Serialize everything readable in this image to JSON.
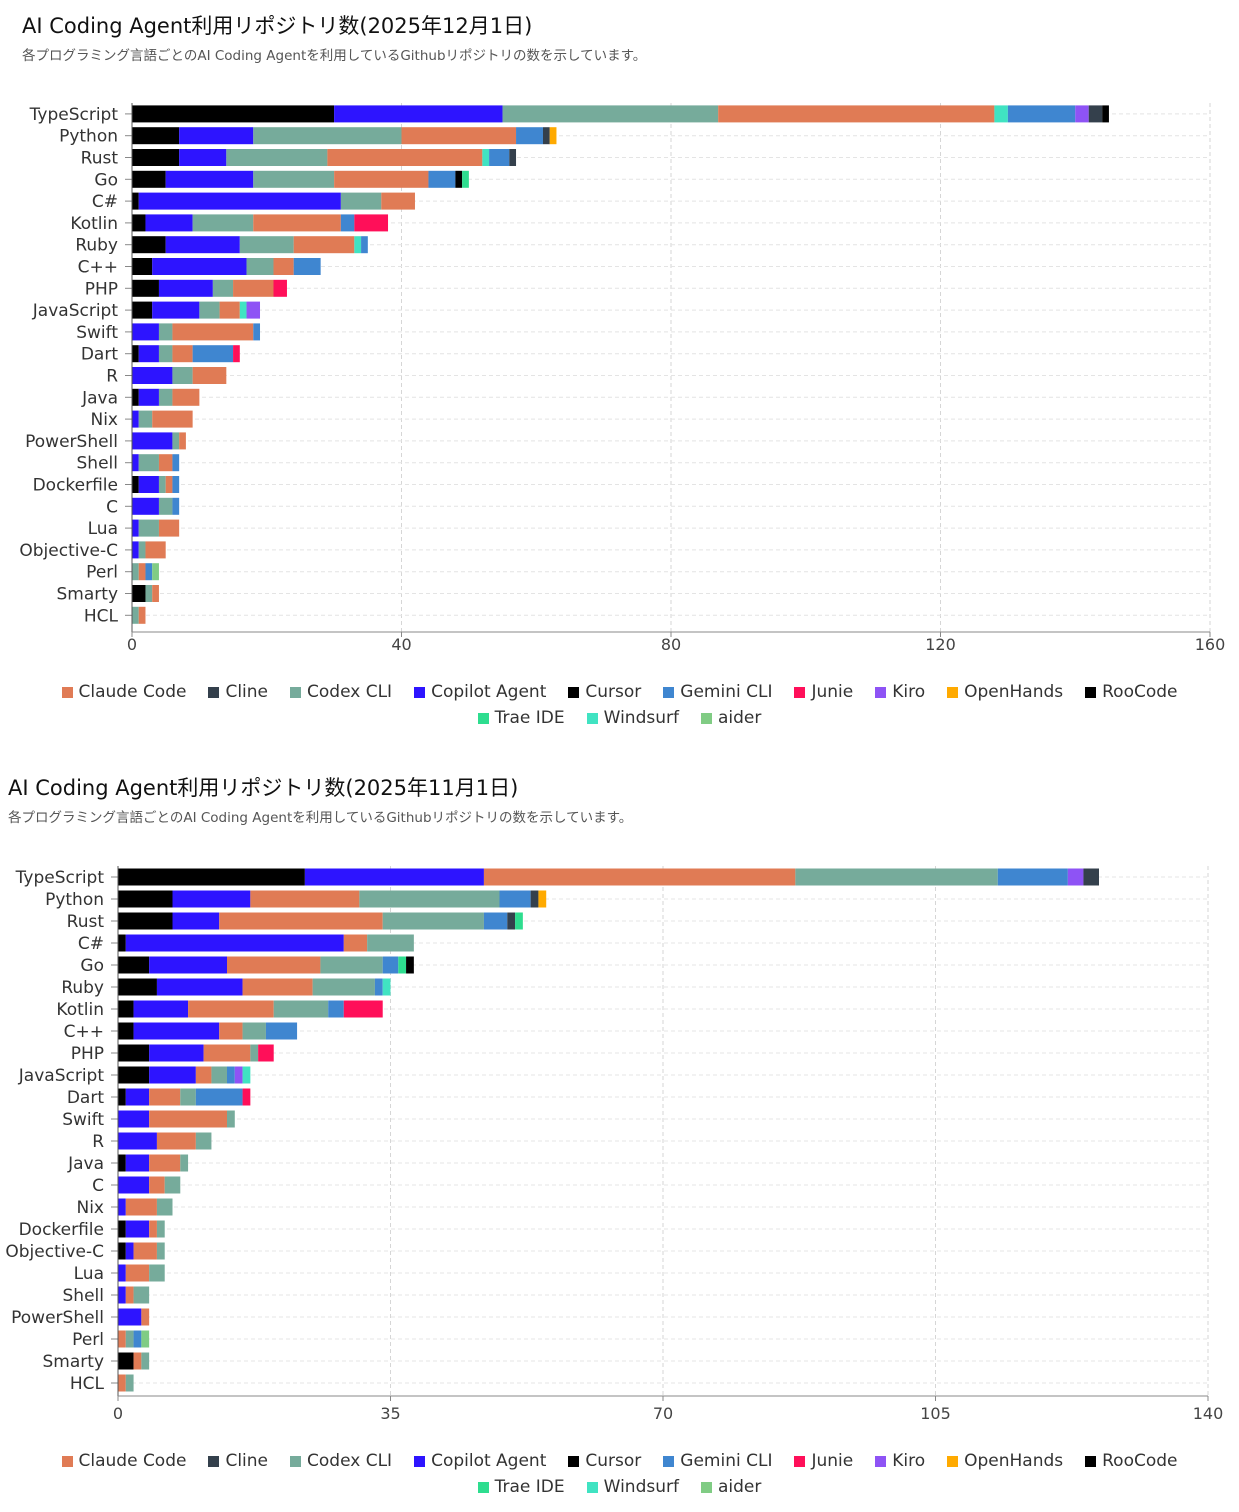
{
  "colors": {
    "Claude Code": "#e07b55",
    "Cline": "#34404c",
    "Codex CLI": "#76ab9b",
    "Copilot Agent": "#2d14ff",
    "Cursor": "#000000",
    "Gemini CLI": "#3f86d0",
    "Junie": "#ff0f59",
    "Kiro": "#8e53f5",
    "OpenHands": "#ffaa00",
    "RooCode": "#000000",
    "Trae IDE": "#2edd8f",
    "Windsurf": "#40e3c2",
    "aider": "#80cc84"
  },
  "legend_labels": [
    "Claude Code",
    "Cline",
    "Codex CLI",
    "Copilot Agent",
    "Cursor",
    "Gemini CLI",
    "Junie",
    "Kiro",
    "OpenHands",
    "RooCode",
    "Trae IDE",
    "Windsurf",
    "aider"
  ],
  "chart_data": [
    {
      "type": "bar",
      "orientation": "horizontal",
      "stacked": true,
      "title": "AI Coding Agent利用リポジトリ数(2025年12月1日)",
      "subtitle": "各プログラミング言語ごとのAI Coding Agentを利用しているGithubリポジトリの数を示しています。",
      "xlim": [
        0,
        160
      ],
      "xticks": [
        0,
        40,
        80,
        120,
        160
      ],
      "grid": true,
      "legend_position": "bottom",
      "categories": [
        "TypeScript",
        "Python",
        "Rust",
        "Go",
        "C#",
        "Kotlin",
        "Ruby",
        "C++",
        "PHP",
        "JavaScript",
        "Swift",
        "Dart",
        "R",
        "Java",
        "Nix",
        "PowerShell",
        "Shell",
        "Dockerfile",
        "C",
        "Lua",
        "Objective-C",
        "Perl",
        "Smarty",
        "HCL"
      ],
      "bars": [
        [
          [
            "Cursor",
            30
          ],
          [
            "Copilot Agent",
            25
          ],
          [
            "Codex CLI",
            32
          ],
          [
            "Claude Code",
            41
          ],
          [
            "Windsurf",
            2
          ],
          [
            "Gemini CLI",
            10
          ],
          [
            "Kiro",
            2
          ],
          [
            "Cline",
            2
          ],
          [
            "RooCode",
            1
          ]
        ],
        [
          [
            "Cursor",
            7
          ],
          [
            "Copilot Agent",
            11
          ],
          [
            "Codex CLI",
            22
          ],
          [
            "Claude Code",
            17
          ],
          [
            "Gemini CLI",
            4
          ],
          [
            "Cline",
            1
          ],
          [
            "OpenHands",
            1
          ]
        ],
        [
          [
            "Cursor",
            7
          ],
          [
            "Copilot Agent",
            7
          ],
          [
            "Codex CLI",
            15
          ],
          [
            "Claude Code",
            23
          ],
          [
            "Windsurf",
            1
          ],
          [
            "Gemini CLI",
            3
          ],
          [
            "Cline",
            1
          ]
        ],
        [
          [
            "Cursor",
            5
          ],
          [
            "Copilot Agent",
            13
          ],
          [
            "Codex CLI",
            12
          ],
          [
            "Claude Code",
            14
          ],
          [
            "Gemini CLI",
            4
          ],
          [
            "RooCode",
            1
          ],
          [
            "Trae IDE",
            1
          ]
        ],
        [
          [
            "Cursor",
            1
          ],
          [
            "Copilot Agent",
            30
          ],
          [
            "Codex CLI",
            6
          ],
          [
            "Claude Code",
            5
          ]
        ],
        [
          [
            "Cursor",
            2
          ],
          [
            "Copilot Agent",
            7
          ],
          [
            "Codex CLI",
            9
          ],
          [
            "Claude Code",
            13
          ],
          [
            "Gemini CLI",
            2
          ],
          [
            "Junie",
            5
          ]
        ],
        [
          [
            "Cursor",
            5
          ],
          [
            "Copilot Agent",
            11
          ],
          [
            "Codex CLI",
            8
          ],
          [
            "Claude Code",
            9
          ],
          [
            "Windsurf",
            1
          ],
          [
            "Gemini CLI",
            1
          ]
        ],
        [
          [
            "Cursor",
            3
          ],
          [
            "Copilot Agent",
            14
          ],
          [
            "Codex CLI",
            4
          ],
          [
            "Claude Code",
            3
          ],
          [
            "Gemini CLI",
            4
          ]
        ],
        [
          [
            "Cursor",
            4
          ],
          [
            "Copilot Agent",
            8
          ],
          [
            "Codex CLI",
            3
          ],
          [
            "Claude Code",
            6
          ],
          [
            "Junie",
            2
          ]
        ],
        [
          [
            "Cursor",
            3
          ],
          [
            "Copilot Agent",
            7
          ],
          [
            "Codex CLI",
            3
          ],
          [
            "Claude Code",
            3
          ],
          [
            "Windsurf",
            1
          ],
          [
            "Kiro",
            2
          ]
        ],
        [
          [
            "Copilot Agent",
            4
          ],
          [
            "Codex CLI",
            2
          ],
          [
            "Claude Code",
            12
          ],
          [
            "Gemini CLI",
            1
          ]
        ],
        [
          [
            "Cursor",
            1
          ],
          [
            "Copilot Agent",
            3
          ],
          [
            "Codex CLI",
            2
          ],
          [
            "Claude Code",
            3
          ],
          [
            "Gemini CLI",
            6
          ],
          [
            "Junie",
            1
          ]
        ],
        [
          [
            "Copilot Agent",
            6
          ],
          [
            "Codex CLI",
            3
          ],
          [
            "Claude Code",
            5
          ]
        ],
        [
          [
            "Cursor",
            1
          ],
          [
            "Copilot Agent",
            3
          ],
          [
            "Codex CLI",
            2
          ],
          [
            "Claude Code",
            4
          ]
        ],
        [
          [
            "Copilot Agent",
            1
          ],
          [
            "Codex CLI",
            2
          ],
          [
            "Claude Code",
            6
          ]
        ],
        [
          [
            "Copilot Agent",
            6
          ],
          [
            "Codex CLI",
            1
          ],
          [
            "Claude Code",
            1
          ]
        ],
        [
          [
            "Copilot Agent",
            1
          ],
          [
            "Codex CLI",
            3
          ],
          [
            "Claude Code",
            2
          ],
          [
            "Gemini CLI",
            1
          ]
        ],
        [
          [
            "Cursor",
            1
          ],
          [
            "Copilot Agent",
            3
          ],
          [
            "Codex CLI",
            1
          ],
          [
            "Claude Code",
            1
          ],
          [
            "Gemini CLI",
            1
          ]
        ],
        [
          [
            "Copilot Agent",
            4
          ],
          [
            "Codex CLI",
            2
          ],
          [
            "Gemini CLI",
            1
          ]
        ],
        [
          [
            "Copilot Agent",
            1
          ],
          [
            "Codex CLI",
            3
          ],
          [
            "Claude Code",
            3
          ]
        ],
        [
          [
            "Copilot Agent",
            1
          ],
          [
            "Codex CLI",
            1
          ],
          [
            "Claude Code",
            3
          ]
        ],
        [
          [
            "Codex CLI",
            1
          ],
          [
            "Claude Code",
            1
          ],
          [
            "Gemini CLI",
            1
          ],
          [
            "aider",
            1
          ]
        ],
        [
          [
            "Cursor",
            2
          ],
          [
            "Codex CLI",
            1
          ],
          [
            "Claude Code",
            1
          ]
        ],
        [
          [
            "Codex CLI",
            1
          ],
          [
            "Claude Code",
            1
          ]
        ]
      ]
    },
    {
      "type": "bar",
      "orientation": "horizontal",
      "stacked": true,
      "title": "AI Coding Agent利用リポジトリ数(2025年11月1日)",
      "subtitle": "各プログラミング言語ごとのAI Coding Agentを利用しているGithubリポジトリの数を示しています。",
      "xlim": [
        0,
        140
      ],
      "xticks": [
        0,
        35,
        70,
        105,
        140
      ],
      "grid": true,
      "legend_position": "bottom",
      "categories": [
        "TypeScript",
        "Python",
        "Rust",
        "C#",
        "Go",
        "Ruby",
        "Kotlin",
        "C++",
        "PHP",
        "JavaScript",
        "Dart",
        "Swift",
        "R",
        "Java",
        "C",
        "Nix",
        "Dockerfile",
        "Objective-C",
        "Lua",
        "Shell",
        "PowerShell",
        "Perl",
        "Smarty",
        "HCL"
      ],
      "bars": [
        [
          [
            "Cursor",
            24
          ],
          [
            "Copilot Agent",
            23
          ],
          [
            "Claude Code",
            40
          ],
          [
            "Codex CLI",
            26
          ],
          [
            "Gemini CLI",
            9
          ],
          [
            "Kiro",
            2
          ],
          [
            "Cline",
            2
          ]
        ],
        [
          [
            "Cursor",
            7
          ],
          [
            "Copilot Agent",
            10
          ],
          [
            "Claude Code",
            14
          ],
          [
            "Codex CLI",
            18
          ],
          [
            "Gemini CLI",
            4
          ],
          [
            "Cline",
            1
          ],
          [
            "OpenHands",
            1
          ]
        ],
        [
          [
            "Cursor",
            7
          ],
          [
            "Copilot Agent",
            6
          ],
          [
            "Claude Code",
            21
          ],
          [
            "Codex CLI",
            13
          ],
          [
            "Gemini CLI",
            3
          ],
          [
            "Cline",
            1
          ],
          [
            "Trae IDE",
            1
          ]
        ],
        [
          [
            "Cursor",
            1
          ],
          [
            "Copilot Agent",
            28
          ],
          [
            "Claude Code",
            3
          ],
          [
            "Codex CLI",
            6
          ]
        ],
        [
          [
            "Cursor",
            4
          ],
          [
            "Copilot Agent",
            10
          ],
          [
            "Claude Code",
            12
          ],
          [
            "Codex CLI",
            8
          ],
          [
            "Gemini CLI",
            2
          ],
          [
            "Trae IDE",
            1
          ],
          [
            "RooCode",
            1
          ]
        ],
        [
          [
            "Cursor",
            5
          ],
          [
            "Copilot Agent",
            11
          ],
          [
            "Claude Code",
            9
          ],
          [
            "Codex CLI",
            8
          ],
          [
            "Gemini CLI",
            1
          ],
          [
            "Windsurf",
            1
          ]
        ],
        [
          [
            "Cursor",
            2
          ],
          [
            "Copilot Agent",
            7
          ],
          [
            "Claude Code",
            11
          ],
          [
            "Codex CLI",
            7
          ],
          [
            "Gemini CLI",
            2
          ],
          [
            "Junie",
            5
          ]
        ],
        [
          [
            "Cursor",
            2
          ],
          [
            "Copilot Agent",
            11
          ],
          [
            "Claude Code",
            3
          ],
          [
            "Codex CLI",
            3
          ],
          [
            "Gemini CLI",
            4
          ]
        ],
        [
          [
            "Cursor",
            4
          ],
          [
            "Copilot Agent",
            7
          ],
          [
            "Claude Code",
            6
          ],
          [
            "Codex CLI",
            1
          ],
          [
            "Junie",
            2
          ]
        ],
        [
          [
            "Cursor",
            4
          ],
          [
            "Copilot Agent",
            6
          ],
          [
            "Claude Code",
            2
          ],
          [
            "Codex CLI",
            2
          ],
          [
            "Gemini CLI",
            1
          ],
          [
            "Kiro",
            1
          ],
          [
            "Windsurf",
            1
          ]
        ],
        [
          [
            "Cursor",
            1
          ],
          [
            "Copilot Agent",
            3
          ],
          [
            "Claude Code",
            4
          ],
          [
            "Codex CLI",
            2
          ],
          [
            "Gemini CLI",
            6
          ],
          [
            "Junie",
            1
          ]
        ],
        [
          [
            "Copilot Agent",
            4
          ],
          [
            "Claude Code",
            10
          ],
          [
            "Codex CLI",
            1
          ]
        ],
        [
          [
            "Copilot Agent",
            5
          ],
          [
            "Claude Code",
            5
          ],
          [
            "Codex CLI",
            2
          ]
        ],
        [
          [
            "Cursor",
            1
          ],
          [
            "Copilot Agent",
            3
          ],
          [
            "Claude Code",
            4
          ],
          [
            "Codex CLI",
            1
          ]
        ],
        [
          [
            "Copilot Agent",
            4
          ],
          [
            "Claude Code",
            2
          ],
          [
            "Codex CLI",
            2
          ]
        ],
        [
          [
            "Copilot Agent",
            1
          ],
          [
            "Claude Code",
            4
          ],
          [
            "Codex CLI",
            2
          ]
        ],
        [
          [
            "Cursor",
            1
          ],
          [
            "Copilot Agent",
            3
          ],
          [
            "Claude Code",
            1
          ],
          [
            "Codex CLI",
            1
          ]
        ],
        [
          [
            "Cursor",
            1
          ],
          [
            "Copilot Agent",
            1
          ],
          [
            "Claude Code",
            3
          ],
          [
            "Codex CLI",
            1
          ]
        ],
        [
          [
            "Copilot Agent",
            1
          ],
          [
            "Claude Code",
            3
          ],
          [
            "Codex CLI",
            2
          ]
        ],
        [
          [
            "Copilot Agent",
            1
          ],
          [
            "Claude Code",
            1
          ],
          [
            "Codex CLI",
            2
          ]
        ],
        [
          [
            "Copilot Agent",
            3
          ],
          [
            "Claude Code",
            1
          ]
        ],
        [
          [
            "Claude Code",
            1
          ],
          [
            "Codex CLI",
            1
          ],
          [
            "Gemini CLI",
            1
          ],
          [
            "aider",
            1
          ]
        ],
        [
          [
            "Cursor",
            2
          ],
          [
            "Claude Code",
            1
          ],
          [
            "Codex CLI",
            1
          ]
        ],
        [
          [
            "Claude Code",
            1
          ],
          [
            "Codex CLI",
            1
          ]
        ]
      ]
    }
  ]
}
